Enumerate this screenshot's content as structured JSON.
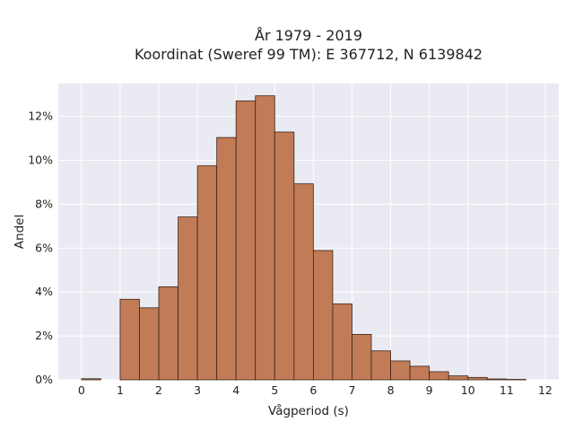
{
  "chart_data": {
    "type": "bar",
    "title_line1": "År 1979 - 2019",
    "title_line2": "Koordinat (Sweref 99 TM): E 367712, N 6139842",
    "xlabel": "Vågperiod (s)",
    "ylabel": "Andel",
    "xlim": [
      -0.6,
      12.35
    ],
    "ylim": [
      0,
      13.5
    ],
    "x_ticks": [
      0,
      1,
      2,
      3,
      4,
      5,
      6,
      7,
      8,
      9,
      10,
      11,
      12
    ],
    "x_tick_labels": [
      "0",
      "1",
      "2",
      "3",
      "4",
      "5",
      "6",
      "7",
      "8",
      "9",
      "10",
      "11",
      "12"
    ],
    "y_ticks": [
      0,
      2,
      4,
      6,
      8,
      10,
      12
    ],
    "y_tick_labels": [
      "0%",
      "2%",
      "4%",
      "6%",
      "8%",
      "10%",
      "12%"
    ],
    "bin_width": 0.5,
    "bins": [
      {
        "start": 0.0,
        "value": 0.05
      },
      {
        "start": 1.0,
        "value": 3.67
      },
      {
        "start": 1.5,
        "value": 3.28
      },
      {
        "start": 2.0,
        "value": 4.24
      },
      {
        "start": 2.5,
        "value": 7.42
      },
      {
        "start": 3.0,
        "value": 9.75
      },
      {
        "start": 3.5,
        "value": 11.04
      },
      {
        "start": 4.0,
        "value": 12.71
      },
      {
        "start": 4.5,
        "value": 12.94
      },
      {
        "start": 5.0,
        "value": 11.29
      },
      {
        "start": 5.5,
        "value": 8.93
      },
      {
        "start": 6.0,
        "value": 5.89
      },
      {
        "start": 6.5,
        "value": 3.46
      },
      {
        "start": 7.0,
        "value": 2.07
      },
      {
        "start": 7.5,
        "value": 1.32
      },
      {
        "start": 8.0,
        "value": 0.86
      },
      {
        "start": 8.5,
        "value": 0.62
      },
      {
        "start": 9.0,
        "value": 0.37
      },
      {
        "start": 9.5,
        "value": 0.18
      },
      {
        "start": 10.0,
        "value": 0.11
      },
      {
        "start": 10.5,
        "value": 0.04
      },
      {
        "start": 11.0,
        "value": 0.02
      }
    ],
    "grid": true,
    "colors": {
      "bar_fill": "#c17b56",
      "bar_edge": "#3b2418",
      "plot_background": "#eaeaf2",
      "grid": "#ffffff"
    }
  }
}
